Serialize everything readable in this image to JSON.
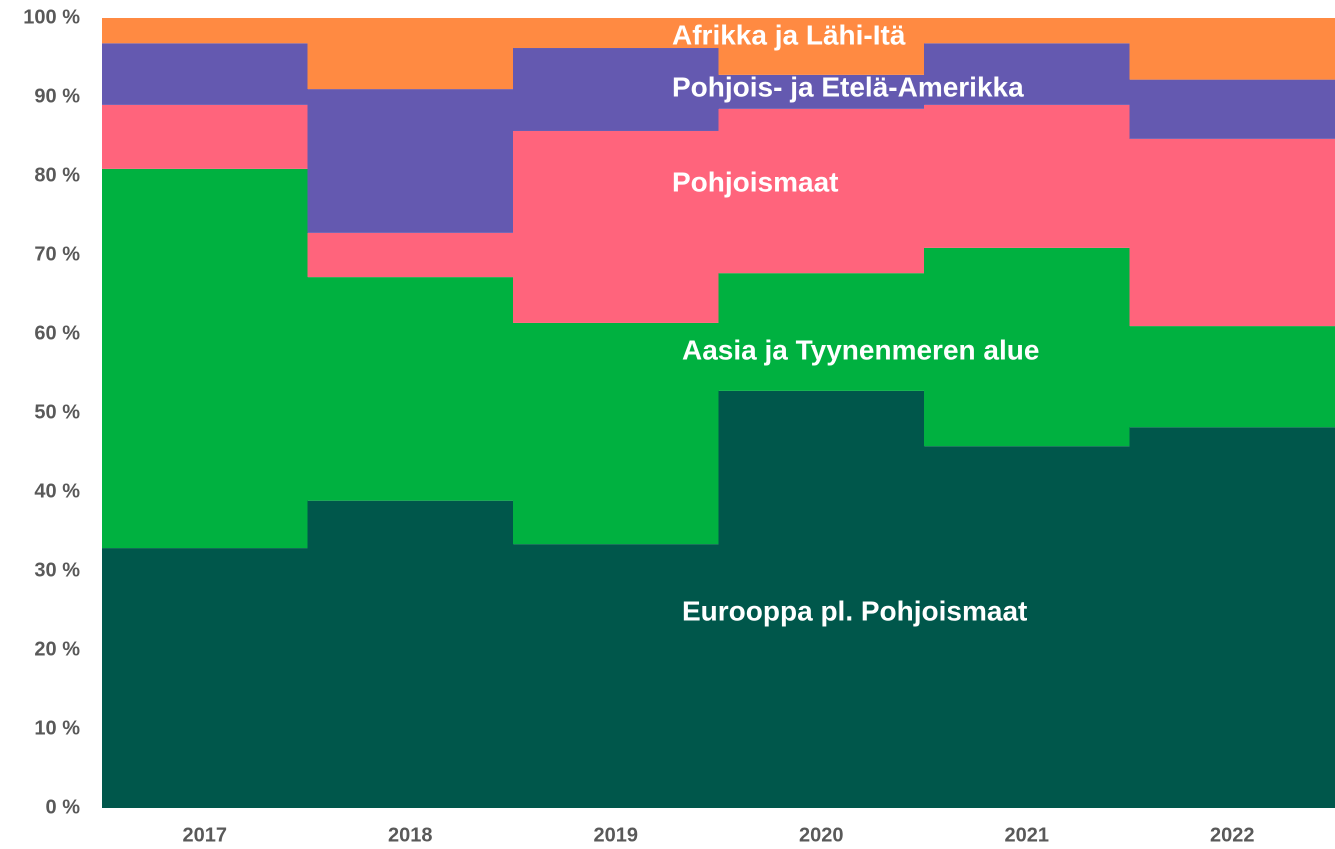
{
  "chart_data": {
    "type": "stacked_bar",
    "categories": [
      "2017",
      "2018",
      "2019",
      "2020",
      "2021",
      "2022"
    ],
    "series": [
      {
        "name": "Eurooppa pl. Pohjoismaat",
        "color": "#00574b",
        "values": [
          32.9,
          38.9,
          33.4,
          52.8,
          45.8,
          48.2
        ]
      },
      {
        "name": "Aasia ja Tyynenmeren alue",
        "color": "#00b140",
        "values": [
          48,
          28.3,
          28,
          14.9,
          25.1,
          12.8
        ]
      },
      {
        "name": "Pohjoismaat",
        "color": "#ff647c",
        "values": [
          8.1,
          5.6,
          24.3,
          20.8,
          18.1,
          23.7
        ]
      },
      {
        "name": "Pohjois- ja Etelä-Amerikka",
        "color": "#6459b0",
        "values": [
          7.8,
          18.2,
          10.5,
          4.3,
          7.8,
          7.5
        ]
      },
      {
        "name": "Afrikka ja Lähi-Itä",
        "color": "#ff8a42",
        "values": [
          3.2,
          9,
          3.8,
          7.2,
          3.2,
          7.8
        ]
      }
    ],
    "ylim": [
      0,
      100
    ],
    "yticks": [
      {
        "value": 0,
        "label": "0 %"
      },
      {
        "value": 10,
        "label": "10 %"
      },
      {
        "value": 20,
        "label": "20 %"
      },
      {
        "value": 30,
        "label": "30 %"
      },
      {
        "value": 40,
        "label": "40 %"
      },
      {
        "value": 50,
        "label": "50 %"
      },
      {
        "value": 60,
        "label": "60 %"
      },
      {
        "value": 70,
        "label": "70 %"
      },
      {
        "value": 80,
        "label": "80 %"
      },
      {
        "value": 90,
        "label": "90 %"
      },
      {
        "value": 100,
        "label": "100 %"
      }
    ],
    "grid": false
  }
}
